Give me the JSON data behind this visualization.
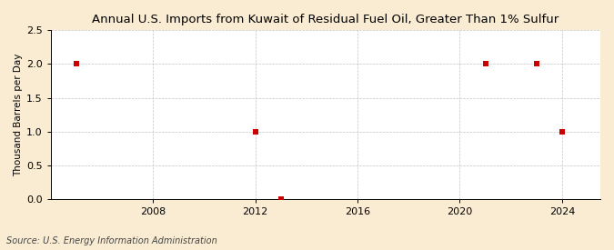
{
  "title": "Annual U.S. Imports from Kuwait of Residual Fuel Oil, Greater Than 1% Sulfur",
  "ylabel": "Thousand Barrels per Day",
  "source": "Source: U.S. Energy Information Administration",
  "x_data": [
    2005,
    2012,
    2013,
    2021,
    2023,
    2024
  ],
  "y_data": [
    2.0,
    1.0,
    0.0,
    2.0,
    2.0,
    1.0
  ],
  "xlim": [
    2004,
    2025.5
  ],
  "ylim": [
    0.0,
    2.5
  ],
  "yticks": [
    0.0,
    0.5,
    1.0,
    1.5,
    2.0,
    2.5
  ],
  "xticks": [
    2008,
    2012,
    2016,
    2020,
    2024
  ],
  "outer_bg": "#faecd2",
  "plot_bg": "#ffffff",
  "grid_color": "#aaaaaa",
  "marker_color": "#cc0000",
  "marker_size": 4,
  "title_fontsize": 9.5,
  "label_fontsize": 7.5,
  "tick_fontsize": 8,
  "source_fontsize": 7
}
